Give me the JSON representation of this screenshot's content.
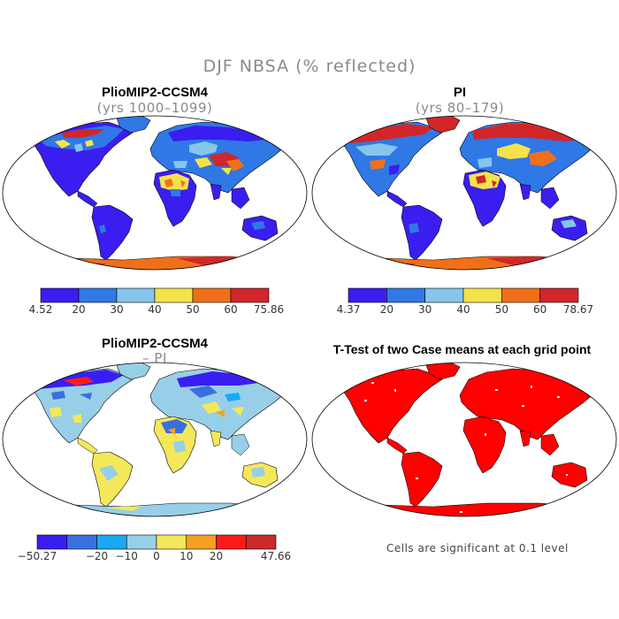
{
  "title": "DJF NBSA (% reflected)",
  "panels": [
    {
      "title": "PlioMIP2-CCSM4",
      "subtitle": "(yrs 1000–1099)",
      "colorbar": {
        "colors": [
          "#3a1ef0",
          "#2f78e6",
          "#86c5ec",
          "#f5e24a",
          "#f0701a",
          "#d2262b"
        ],
        "labels": [
          "4.52",
          "20",
          "30",
          "40",
          "50",
          "60",
          "75.86"
        ]
      }
    },
    {
      "title": "PI",
      "subtitle": "(yrs 80–179)",
      "colorbar": {
        "colors": [
          "#3a1ef0",
          "#2f78e6",
          "#86c5ec",
          "#f5e24a",
          "#f0701a",
          "#d2262b"
        ],
        "labels": [
          "4.37",
          "20",
          "30",
          "40",
          "50",
          "60",
          "78.67"
        ]
      }
    },
    {
      "title": "PlioMIP2-CCSM4",
      "subtitle": "– PI",
      "colorbar": {
        "colors": [
          "#3a1ef0",
          "#3a6fe0",
          "#1aa8f0",
          "#98cfe8",
          "#f5e75a",
          "#f5a020",
          "#ff1a1a",
          "#cc2a2a"
        ],
        "labels": [
          "−50.27",
          "−20",
          "−10",
          "0",
          "10",
          "20",
          "47.66"
        ]
      }
    },
    {
      "title": "T-Test of two Case means at each grid point",
      "note": "Cells are significant at 0.1 level"
    }
  ],
  "colors": {
    "title_gray": "#8a8a8a",
    "significant_red": "#ff0000"
  }
}
